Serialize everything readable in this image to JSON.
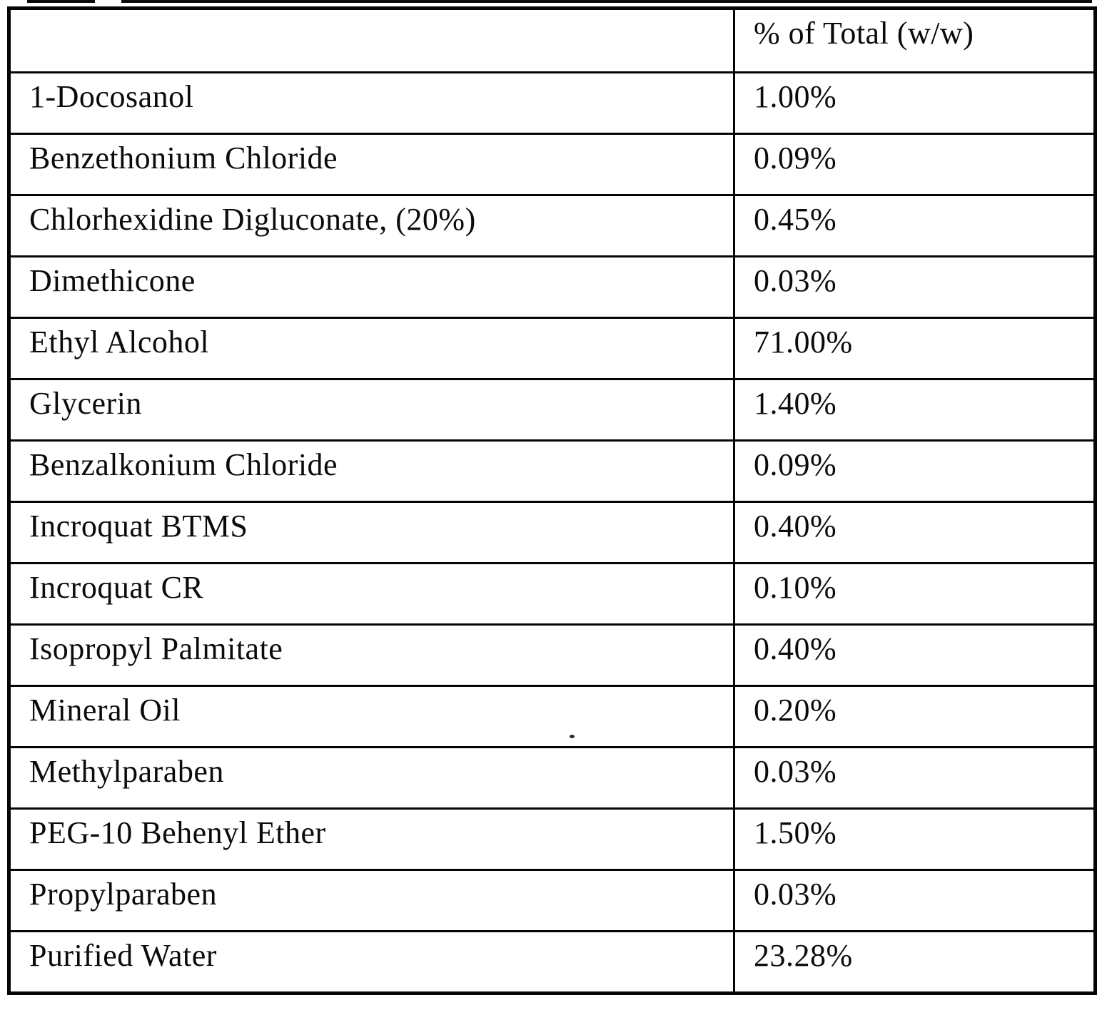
{
  "table": {
    "header": {
      "ingredient_label": "",
      "value_label": "% of Total (w/w)"
    },
    "rows": [
      {
        "ingredient": "1-Docosanol",
        "value": "1.00%"
      },
      {
        "ingredient": "Benzethonium Chloride",
        "value": "0.09%"
      },
      {
        "ingredient": "Chlorhexidine Digluconate, (20%)",
        "value": "0.45%"
      },
      {
        "ingredient": "Dimethicone",
        "value": "0.03%"
      },
      {
        "ingredient": "Ethyl Alcohol",
        "value": "71.00%"
      },
      {
        "ingredient": "Glycerin",
        "value": "1.40%"
      },
      {
        "ingredient": "Benzalkonium Chloride",
        "value": "0.09%"
      },
      {
        "ingredient": "Incroquat BTMS",
        "value": "0.40%"
      },
      {
        "ingredient": "Incroquat CR",
        "value": "0.10%"
      },
      {
        "ingredient": "Isopropyl Palmitate",
        "value": "0.40%"
      },
      {
        "ingredient": "Mineral Oil",
        "value": "0.20%"
      },
      {
        "ingredient": "Methylparaben",
        "value": "0.03%"
      },
      {
        "ingredient": "PEG-10 Behenyl Ether",
        "value": "1.50%"
      },
      {
        "ingredient": "Propylparaben",
        "value": "0.03%"
      },
      {
        "ingredient": "Purified Water",
        "value": "23.28%"
      }
    ]
  }
}
